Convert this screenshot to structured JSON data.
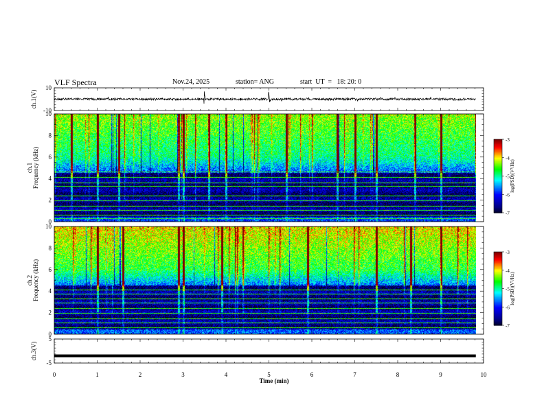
{
  "header": {
    "title": "VLF Spectra",
    "date": "Nov.24, 2025",
    "station": "station= ANG",
    "start": "start  UT  =   18: 20: 0"
  },
  "chart_data": [
    {
      "type": "line",
      "panel": "ch1-waveform",
      "ylabel": "ch.1(V)",
      "yticks": [
        "10",
        "-10"
      ],
      "ylim": [
        -10,
        10
      ],
      "xlim": [
        0,
        10
      ],
      "description_values": {
        "baseline": 0,
        "typical_amplitude": 1,
        "notable_spikes_min": [
          3.5,
          5.0
        ]
      }
    },
    {
      "type": "heatmap",
      "panel": "ch1-spectrogram",
      "ylabel": "ch.1\nFrequency (kHz)",
      "ylabel_lines": [
        "ch.1",
        "Frequency (kHz)"
      ],
      "yticks": [
        "0",
        "2",
        "4",
        "6",
        "8",
        "10"
      ],
      "ylim": [
        0,
        10
      ],
      "xlim": [
        0,
        10
      ],
      "colorbar": {
        "label": "log(PSD)(V²/Hz)",
        "ticks": [
          "-3",
          "-4",
          "-5",
          "-6",
          "-7"
        ],
        "range": [
          -7,
          -3
        ]
      },
      "persistent_lines_khz": [
        0.25,
        0.6,
        1.0,
        1.4,
        1.9,
        2.4,
        3.3,
        3.6,
        4.1,
        4.6
      ],
      "vertical_bursts_min": [
        0.4,
        1.0,
        1.5,
        2.9,
        3.0,
        3.6,
        4.0,
        5.4,
        6.6,
        7.0,
        7.5,
        8.4,
        9.0
      ]
    },
    {
      "type": "heatmap",
      "panel": "ch2-spectrogram",
      "ylabel": "ch.2\nFrequency (kHz)",
      "ylabel_lines": [
        "ch.2",
        "Frequency (kHz)"
      ],
      "yticks": [
        "0",
        "2",
        "4",
        "6",
        "8",
        "10"
      ],
      "ylim": [
        0,
        10
      ],
      "xlim": [
        0,
        10
      ],
      "colorbar": {
        "label": "log(PSD)(V²/Hz)",
        "ticks": [
          "-3",
          "-4",
          "-5",
          "-6",
          "-7"
        ],
        "range": [
          -7,
          -3
        ]
      },
      "persistent_lines_khz": [
        0.6,
        1.0,
        1.4,
        1.9,
        2.4,
        2.9,
        3.3,
        3.7,
        4.1
      ],
      "vertical_bursts_min": [
        1.0,
        1.6,
        2.9,
        3.0,
        3.9,
        5.9,
        7.5,
        8.3,
        9.0
      ]
    },
    {
      "type": "line",
      "panel": "ch3-waveform",
      "ylabel": "ch.3(V)",
      "yticks": [
        "5",
        "-5"
      ],
      "ylim": [
        -5,
        5
      ],
      "xlim": [
        0,
        10
      ],
      "description_values": {
        "constant_level": -2
      }
    }
  ],
  "xaxis": {
    "label": "Time  (min)",
    "ticks": [
      "0",
      "1",
      "2",
      "3",
      "4",
      "5",
      "6",
      "7",
      "8",
      "9",
      "10"
    ],
    "range": [
      0,
      10
    ],
    "data_end": 9.82
  },
  "colors": {
    "floor": "#000020",
    "deep_blue": "#00007f",
    "blue": "#0000ff",
    "cyan": "#00ffff",
    "green": "#00ff00",
    "yellow": "#ffff00",
    "red": "#ff0000",
    "darkred": "#800000"
  }
}
